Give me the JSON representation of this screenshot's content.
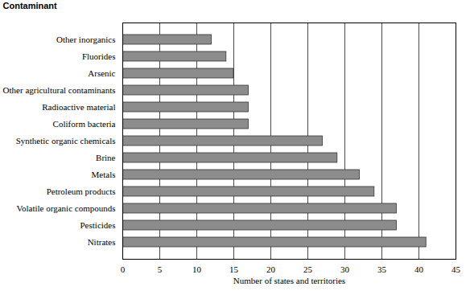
{
  "chart_data": {
    "type": "bar",
    "orientation": "horizontal",
    "ylabel": "Contaminant",
    "xlabel": "Number of states and territories",
    "categories": [
      "Other inorganics",
      "Fluorides",
      "Arsenic",
      "Other agricultural contaminants",
      "Radioactive material",
      "Coliform bacteria",
      "Synthetic organic chemicals",
      "Brine",
      "Metals",
      "Petroleum products",
      "Volatile organic compounds",
      "Pesticides",
      "Nitrates"
    ],
    "values": [
      12,
      14,
      15,
      17,
      17,
      17,
      27,
      29,
      32,
      34,
      37,
      37,
      41
    ],
    "color": "#8c8c8c",
    "xlim": [
      0,
      45
    ],
    "xticks": [
      0,
      5,
      10,
      15,
      20,
      25,
      30,
      35,
      40,
      45
    ],
    "grid": true
  }
}
